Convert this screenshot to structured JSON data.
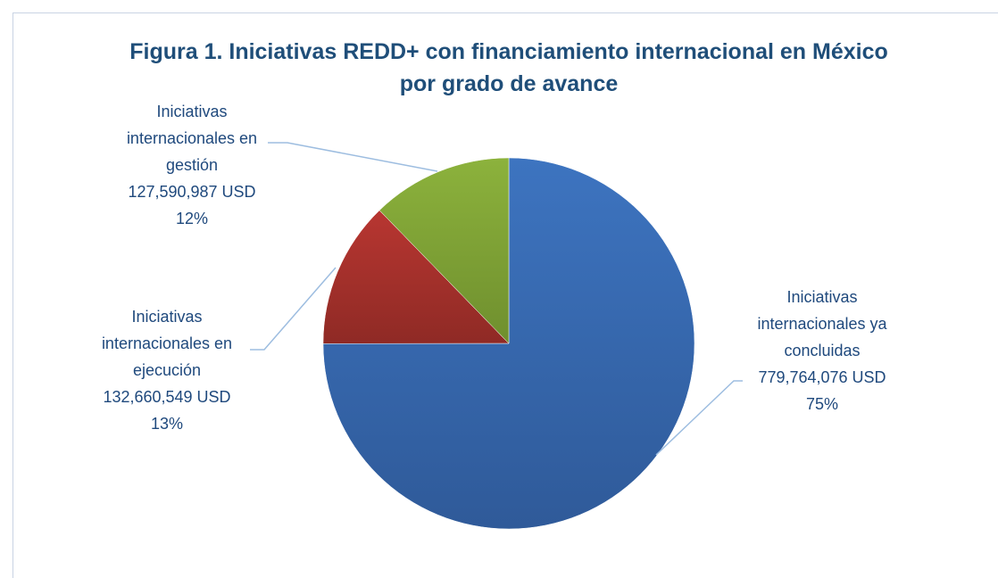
{
  "chart_data": {
    "type": "pie",
    "title": "Figura 1. Iniciativas REDD+ con financiamiento internacional en México por grado de avance",
    "categories": [
      "Iniciativas internacionales ya concluidas",
      "Iniciativas internacionales en ejecución",
      "Iniciativas internacionales en gestión"
    ],
    "values": [
      779764076,
      132660549,
      127590987
    ],
    "value_labels": [
      "779,764,076 USD",
      "132,660,549 USD",
      "127,590,987 USD"
    ],
    "percents": [
      75,
      13,
      12
    ],
    "percent_labels": [
      "75%",
      "13%",
      "12%"
    ],
    "colors": [
      "#3d74c0",
      "#b83631",
      "#8cb23c"
    ]
  }
}
